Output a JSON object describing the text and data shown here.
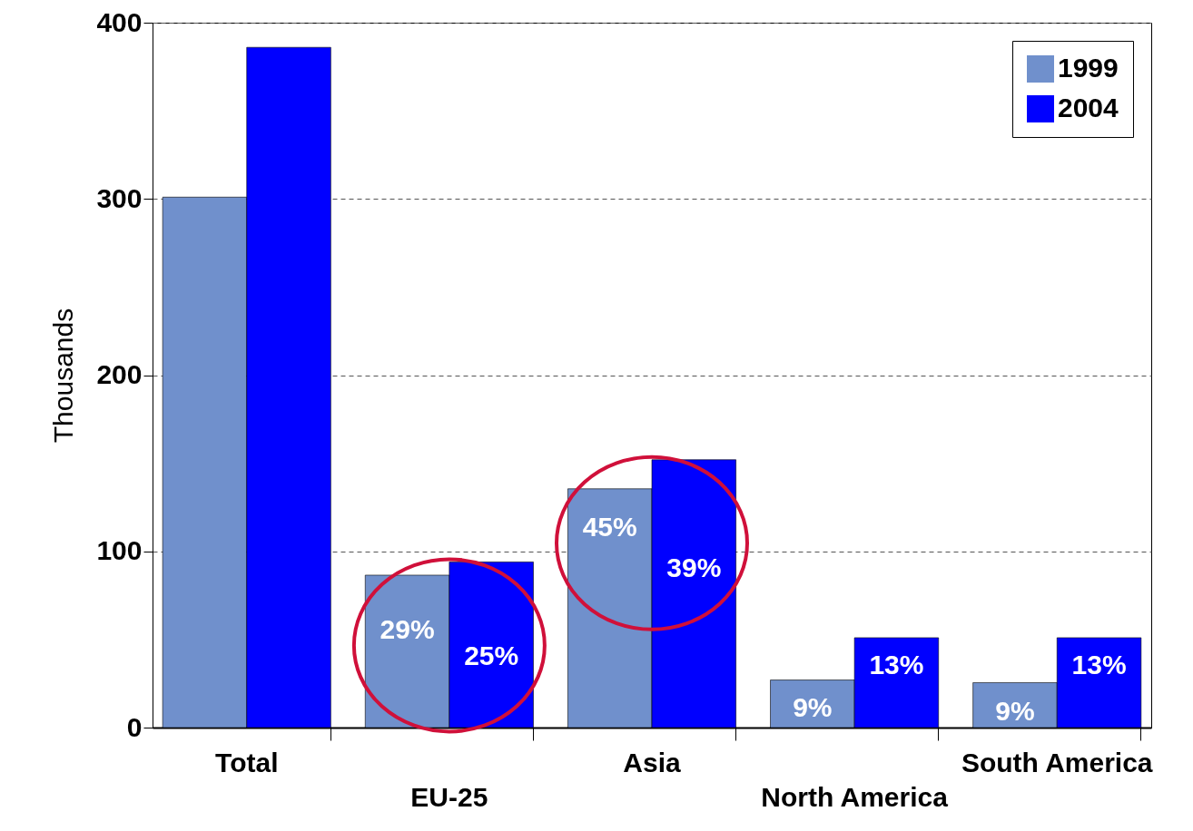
{
  "chart_data": {
    "type": "bar",
    "ylabel": "Thousands",
    "categories": [
      "Total",
      "EU-25",
      "Asia",
      "North America",
      "South America"
    ],
    "series": [
      {
        "name": "1999",
        "color": "#7090cc",
        "values": [
          301,
          86.5,
          135.5,
          27,
          25.5
        ]
      },
      {
        "name": "2004",
        "color": "#0000ff",
        "values": [
          386,
          94,
          152,
          51,
          51
        ]
      }
    ],
    "annotations": [
      {
        "text": "29%",
        "x": "EU-25",
        "y": 55
      },
      {
        "text": "25%",
        "x": "EU-25",
        "y": 40
      },
      {
        "text": "45%",
        "x": "Asia",
        "y": 113
      },
      {
        "text": "39%",
        "x": "Asia",
        "y": 90
      },
      {
        "text": "9%",
        "x": "North America",
        "y": 11
      },
      {
        "text": "13%",
        "x": "North America",
        "y": 35
      },
      {
        "text": "9%",
        "x": "South America",
        "y": 9
      },
      {
        "text": "13%",
        "x": "South America",
        "y": 35
      }
    ],
    "ylim": [
      0,
      400
    ],
    "yticks": [
      0,
      100,
      200,
      300,
      400
    ],
    "grid": "y",
    "legend": "top right"
  }
}
